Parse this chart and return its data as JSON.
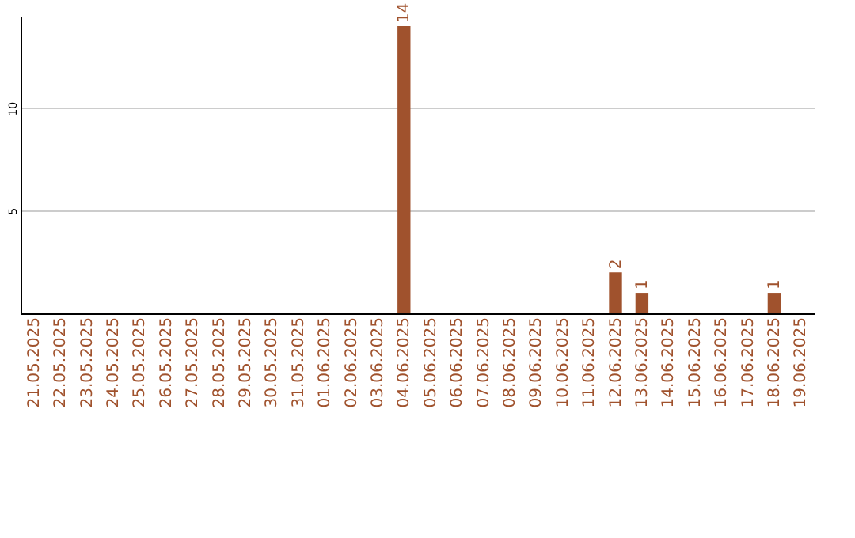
{
  "chart_data": {
    "type": "bar",
    "categories": [
      "21.05.2025",
      "22.05.2025",
      "23.05.2025",
      "24.05.2025",
      "25.05.2025",
      "26.05.2025",
      "27.05.2025",
      "28.05.2025",
      "29.05.2025",
      "30.05.2025",
      "31.05.2025",
      "01.06.2025",
      "02.06.2025",
      "03.06.2025",
      "04.06.2025",
      "05.06.2025",
      "06.06.2025",
      "07.06.2025",
      "08.06.2025",
      "09.06.2025",
      "10.06.2025",
      "11.06.2025",
      "12.06.2025",
      "13.06.2025",
      "14.06.2025",
      "15.06.2025",
      "16.06.2025",
      "17.06.2025",
      "18.06.2025",
      "19.06.2025"
    ],
    "values": [
      0,
      0,
      0,
      0,
      0,
      0,
      0,
      0,
      0,
      0,
      0,
      0,
      0,
      0,
      14,
      0,
      0,
      0,
      0,
      0,
      0,
      0,
      2,
      1,
      0,
      0,
      0,
      0,
      1,
      0
    ],
    "value_labels": [
      null,
      null,
      null,
      null,
      null,
      null,
      null,
      null,
      null,
      null,
      null,
      null,
      null,
      null,
      "14",
      null,
      null,
      null,
      null,
      null,
      null,
      null,
      "2",
      "1",
      null,
      null,
      null,
      null,
      "1",
      null
    ],
    "color": "#a0522d",
    "ylim": [
      0,
      14.5
    ],
    "yticks": [
      5,
      10
    ],
    "grid": "y"
  }
}
